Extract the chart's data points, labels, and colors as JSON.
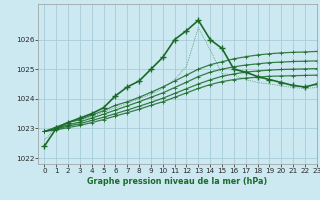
{
  "title": "Graphe pression niveau de la mer (hPa)",
  "bg_color": "#cce8f0",
  "grid_color": "#a8ccda",
  "line_color": "#1a6b2a",
  "xlim": [
    -0.5,
    23
  ],
  "ylim": [
    1021.8,
    1027.2
  ],
  "yticks": [
    1022,
    1023,
    1024,
    1025,
    1026
  ],
  "xticks": [
    0,
    1,
    2,
    3,
    4,
    5,
    6,
    7,
    8,
    9,
    10,
    11,
    12,
    13,
    14,
    15,
    16,
    17,
    18,
    19,
    20,
    21,
    22,
    23
  ],
  "series_main": [
    1022.4,
    1023.0,
    1023.2,
    1023.35,
    1023.5,
    1023.7,
    1024.1,
    1024.4,
    1024.6,
    1025.0,
    1025.4,
    1026.0,
    1026.3,
    1026.65,
    1026.0,
    1025.7,
    1025.0,
    1024.9,
    1024.75,
    1024.65,
    1024.55,
    1024.45,
    1024.4,
    1024.5
  ],
  "series_dotted": [
    1022.6,
    1023.05,
    1023.2,
    1023.28,
    1023.4,
    1023.55,
    1023.7,
    1023.85,
    1024.0,
    1024.15,
    1024.35,
    1024.65,
    1025.1,
    1026.4,
    1025.65,
    1024.85,
    1024.8,
    1024.65,
    1024.55,
    1024.5,
    1024.44,
    1024.38,
    1024.35,
    1024.38
  ],
  "series_flat": [
    [
      1022.9,
      1023.05,
      1023.2,
      1023.3,
      1023.45,
      1023.6,
      1023.78,
      1023.9,
      1024.05,
      1024.22,
      1024.4,
      1024.6,
      1024.8,
      1025.0,
      1025.15,
      1025.25,
      1025.35,
      1025.42,
      1025.48,
      1025.52,
      1025.55,
      1025.57,
      1025.58,
      1025.6
    ],
    [
      1022.9,
      1023.0,
      1023.12,
      1023.22,
      1023.35,
      1023.48,
      1023.62,
      1023.76,
      1023.9,
      1024.05,
      1024.2,
      1024.38,
      1024.56,
      1024.75,
      1024.9,
      1025.0,
      1025.08,
      1025.14,
      1025.18,
      1025.22,
      1025.24,
      1025.26,
      1025.27,
      1025.28
    ],
    [
      1022.9,
      1022.98,
      1023.08,
      1023.16,
      1023.27,
      1023.38,
      1023.5,
      1023.62,
      1023.75,
      1023.88,
      1024.02,
      1024.18,
      1024.34,
      1024.5,
      1024.64,
      1024.76,
      1024.84,
      1024.9,
      1024.94,
      1024.97,
      1024.99,
      1025.0,
      1025.01,
      1025.02
    ],
    [
      1022.9,
      1022.95,
      1023.03,
      1023.1,
      1023.2,
      1023.3,
      1023.42,
      1023.53,
      1023.65,
      1023.78,
      1023.9,
      1024.05,
      1024.2,
      1024.35,
      1024.48,
      1024.58,
      1024.65,
      1024.7,
      1024.73,
      1024.76,
      1024.77,
      1024.78,
      1024.79,
      1024.8
    ]
  ]
}
